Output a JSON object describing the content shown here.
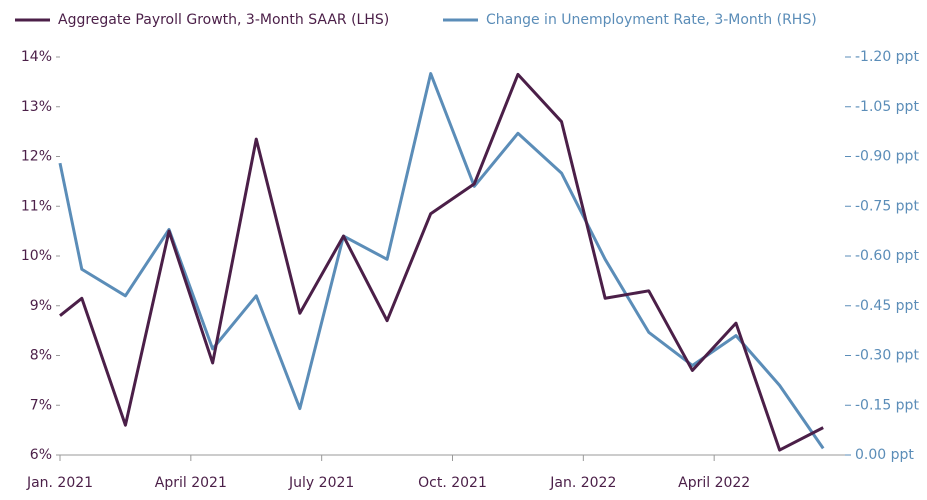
{
  "chart_data": {
    "type": "line",
    "x": [
      0,
      0.5,
      1.5,
      2.5,
      3.5,
      4.5,
      5.5,
      6.5,
      7.5,
      8.5,
      9.5,
      10.5,
      11.5,
      12.5,
      13.5,
      14.5,
      15.5,
      16.5,
      17.5
    ],
    "xlim": [
      0,
      18
    ],
    "xticks": [
      {
        "value": 0,
        "label": "Jan. 2021"
      },
      {
        "value": 3,
        "label": "April 2021"
      },
      {
        "value": 6,
        "label": "July 2021"
      },
      {
        "value": 9,
        "label": "Oct. 2021"
      },
      {
        "value": 12,
        "label": "Jan. 2022"
      },
      {
        "value": 15,
        "label": "April 2022"
      }
    ],
    "ylim": [
      6,
      14
    ],
    "yticks": [
      {
        "value": 6,
        "label": "6%"
      },
      {
        "value": 7,
        "label": "7%"
      },
      {
        "value": 8,
        "label": "8%"
      },
      {
        "value": 9,
        "label": "9%"
      },
      {
        "value": 10,
        "label": "10%"
      },
      {
        "value": 11,
        "label": "11%"
      },
      {
        "value": 12,
        "label": "12%"
      },
      {
        "value": 13,
        "label": "13%"
      },
      {
        "value": 14,
        "label": "14%"
      }
    ],
    "y2lim": [
      0,
      -1.2
    ],
    "y2ticks": [
      {
        "value": 0,
        "label": "0.00 ppt"
      },
      {
        "value": -0.15,
        "label": "-0.15 ppt"
      },
      {
        "value": -0.3,
        "label": "-0.30 ppt"
      },
      {
        "value": -0.45,
        "label": "-0.45 ppt"
      },
      {
        "value": -0.6,
        "label": "-0.60 ppt"
      },
      {
        "value": -0.75,
        "label": "-0.75 ppt"
      },
      {
        "value": -0.9,
        "label": "-0.90 ppt"
      },
      {
        "value": -1.05,
        "label": "-1.05 ppt"
      },
      {
        "value": -1.2,
        "label": "-1.20 ppt"
      }
    ],
    "series": [
      {
        "name": "Aggregate Payroll Growth, 3-Month SAAR (LHS)",
        "color": "#4b1f48",
        "values": [
          8.8,
          9.15,
          6.6,
          10.5,
          7.85,
          12.35,
          8.85,
          10.4,
          8.7,
          10.85,
          11.45,
          13.65,
          12.7,
          9.15,
          9.3,
          7.7,
          8.65,
          6.1,
          6.55
        ]
      },
      {
        "name": "Change in Unemployment Rate, 3-Month (RHS)",
        "color": "#5b8db8",
        "axis": "y2",
        "values": [
          -0.88,
          -0.56,
          -0.48,
          -0.68,
          -0.32,
          -0.48,
          -0.14,
          -0.66,
          -0.59,
          -1.15,
          -0.81,
          -0.97,
          -0.85,
          -0.59,
          -0.37,
          -0.27,
          -0.36,
          -0.21,
          -0.02
        ]
      }
    ]
  }
}
